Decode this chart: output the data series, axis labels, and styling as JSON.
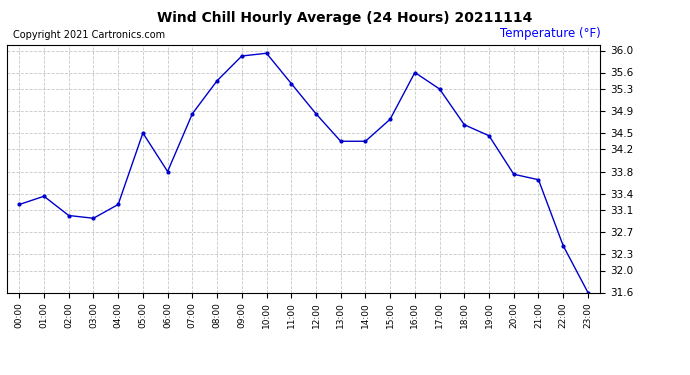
{
  "title": "Wind Chill Hourly Average (24 Hours) 20211114",
  "ylabel": "Temperature (°F)",
  "copyright": "Copyright 2021 Cartronics.com",
  "line_color": "#0000cc",
  "background_color": "#ffffff",
  "grid_color": "#c8c8c8",
  "hours": [
    0,
    1,
    2,
    3,
    4,
    5,
    6,
    7,
    8,
    9,
    10,
    11,
    12,
    13,
    14,
    15,
    16,
    17,
    18,
    19,
    20,
    21,
    22,
    23
  ],
  "values": [
    33.2,
    33.35,
    33.0,
    32.95,
    33.2,
    34.5,
    33.8,
    34.85,
    35.45,
    35.9,
    35.95,
    35.4,
    34.85,
    34.35,
    34.35,
    34.75,
    35.6,
    35.3,
    34.65,
    34.45,
    33.75,
    33.65,
    32.45,
    31.6
  ],
  "xlim": [
    -0.5,
    23.5
  ],
  "ylim": [
    31.6,
    36.1
  ],
  "yticks": [
    31.6,
    32.0,
    32.3,
    32.7,
    33.1,
    33.4,
    33.8,
    34.2,
    34.5,
    34.9,
    35.3,
    35.6,
    36.0
  ],
  "xtick_labels": [
    "00:00",
    "01:00",
    "02:00",
    "03:00",
    "04:00",
    "05:00",
    "06:00",
    "07:00",
    "08:00",
    "09:00",
    "10:00",
    "11:00",
    "12:00",
    "13:00",
    "14:00",
    "15:00",
    "16:00",
    "17:00",
    "18:00",
    "19:00",
    "20:00",
    "21:00",
    "22:00",
    "23:00"
  ]
}
